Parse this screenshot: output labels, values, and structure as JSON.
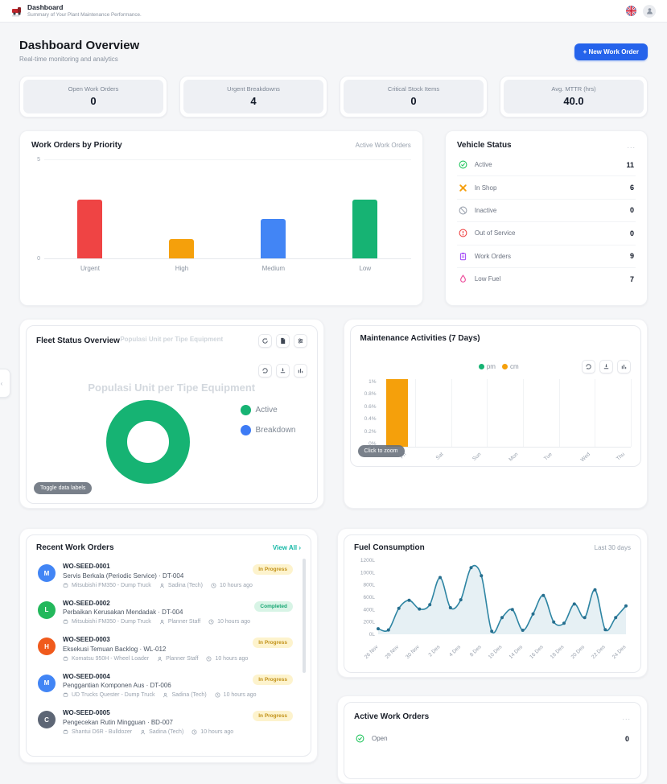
{
  "topbar": {
    "title": "Dashboard",
    "subtitle": "Summary of Your Plant Maintenance Performance."
  },
  "page": {
    "title": "Dashboard Overview",
    "subtitle": "Real-time monitoring and analytics",
    "new_order_button": "+ New Work Order"
  },
  "stats": [
    {
      "label": "Open Work Orders",
      "value": "0"
    },
    {
      "label": "Urgent Breakdowns",
      "value": "4"
    },
    {
      "label": "Critical Stock Items",
      "value": "0"
    },
    {
      "label": "Avg. MTTR (hrs)",
      "value": "40.0"
    }
  ],
  "priority_panel": {
    "title": "Work Orders by Priority",
    "subtitle": "Active Work Orders"
  },
  "vehicle_panel": {
    "title": "Vehicle Status",
    "menu": "...",
    "rows": [
      {
        "icon": "check-circle-icon",
        "label": "Active",
        "value": "11",
        "color": "#22c55e"
      },
      {
        "icon": "tools-icon",
        "label": "In Shop",
        "value": "6",
        "color": "#f59e0b"
      },
      {
        "icon": "ban-icon",
        "label": "Inactive",
        "value": "0",
        "color": "#9ca3af"
      },
      {
        "icon": "alert-circle-icon",
        "label": "Out of Service",
        "value": "0",
        "color": "#ef4444"
      },
      {
        "icon": "clipboard-icon",
        "label": "Work Orders",
        "value": "9",
        "color": "#a855f7"
      },
      {
        "icon": "fuel-icon",
        "label": "Low Fuel",
        "value": "7",
        "color": "#ec4899"
      }
    ]
  },
  "fleet_panel": {
    "title": "Fleet Status Overview",
    "header_caption": "Populasi Unit per Tipe Equipment",
    "chart_title": "Populasi Unit per Tipe Equipment",
    "toolbar": [
      "refresh-icon",
      "export-icon",
      "filter-icon"
    ],
    "chart_toolbar": [
      "reload-icon",
      "download-icon",
      "data-view-icon"
    ],
    "legend": [
      {
        "label": "Active",
        "color": "#16b373"
      },
      {
        "label": "Breakdown",
        "color": "#3d7bf5"
      }
    ],
    "toggle_button": "Toggle data labels"
  },
  "maintenance_panel": {
    "title": "Maintenance Activities (7 Days)",
    "legend": [
      {
        "label": "pm",
        "color": "#16b373"
      },
      {
        "label": "cm",
        "color": "#f5a00b"
      }
    ],
    "chart_toolbar": [
      "reload-icon",
      "download-icon",
      "data-view-icon"
    ],
    "zoom_hint": "Click to zoom"
  },
  "recent_panel": {
    "title": "Recent Work Orders",
    "view_all": "View All",
    "view_all_arrow": "›",
    "meta_icons": [
      "asset-icon",
      "person-icon",
      "clock-icon"
    ],
    "items": [
      {
        "avatar": "M",
        "avatar_color": "#4285f5",
        "code": "WO-SEED-0001",
        "desc": "Servis Berkala (Periodic Service) · DT-004",
        "asset": "Mitsubishi FM350 - Dump Truck",
        "person": "Sadina (Tech)",
        "time": "10 hours ago",
        "status": "In Progress"
      },
      {
        "avatar": "L",
        "avatar_color": "#23b85c",
        "code": "WO-SEED-0002",
        "desc": "Perbaikan Kerusakan Mendadak · DT-004",
        "asset": "Mitsubishi FM350 - Dump Truck",
        "person": "Planner Staff",
        "time": "10 hours ago",
        "status": "Completed"
      },
      {
        "avatar": "H",
        "avatar_color": "#f05a1c",
        "code": "WO-SEED-0003",
        "desc": "Eksekusi Temuan Backlog · WL-012",
        "asset": "Komatsu 950H - Wheel Loader",
        "person": "Planner Staff",
        "time": "10 hours ago",
        "status": "In Progress"
      },
      {
        "avatar": "M",
        "avatar_color": "#4285f5",
        "code": "WO-SEED-0004",
        "desc": "Penggantian Komponen Aus · DT-006",
        "asset": "UD Trucks Quester - Dump Truck",
        "person": "Sadina (Tech)",
        "time": "10 hours ago",
        "status": "In Progress"
      },
      {
        "avatar": "C",
        "avatar_color": "#5d6675",
        "code": "WO-SEED-0005",
        "desc": "Pengecekan Rutin Mingguan · BD-007",
        "asset": "Shantui D6R - Bulldozer",
        "person": "Sadina (Tech)",
        "time": "10 hours ago",
        "status": "In Progress"
      }
    ],
    "badge_styles": {
      "In Progress": {
        "bg": "#fdf3cd",
        "fg": "#c19016"
      },
      "Completed": {
        "bg": "#d8f4e6",
        "fg": "#17a673"
      }
    }
  },
  "fuel_panel": {
    "title": "Fuel Consumption",
    "subtitle": "Last 30 days"
  },
  "active_panel": {
    "title": "Active Work Orders",
    "menu": "...",
    "rows": [
      {
        "icon": "check-circle-icon",
        "label": "Open",
        "value": "0",
        "color": "#22c55e"
      }
    ]
  },
  "chart_data": [
    {
      "id": "priority",
      "type": "bar",
      "title": "Work Orders by Priority",
      "categories": [
        "Urgent",
        "High",
        "Medium",
        "Low"
      ],
      "values": [
        3,
        1,
        2,
        3
      ],
      "colors": [
        "#ef4444",
        "#f5a00b",
        "#4285f5",
        "#16b373"
      ],
      "ylim": [
        0,
        5
      ],
      "ytick_labels": [
        "0",
        "5"
      ]
    },
    {
      "id": "fleet",
      "type": "pie",
      "title": "Populasi Unit per Tipe Equipment",
      "labels": [
        "Active",
        "Breakdown"
      ],
      "values": [
        100,
        0
      ],
      "colors": [
        "#16b373",
        "#3d7bf5"
      ]
    },
    {
      "id": "maintenance",
      "type": "bar",
      "title": "Maintenance Activities (7 Days)",
      "categories": [
        "Fri",
        "Sat",
        "Sun",
        "Mon",
        "Tue",
        "Wed",
        "Thu"
      ],
      "series": [
        {
          "name": "pm",
          "color": "#16b373",
          "values": [
            0,
            0,
            0,
            0,
            0,
            0,
            0
          ]
        },
        {
          "name": "cm",
          "color": "#f5a00b",
          "values": [
            1,
            0,
            0,
            0,
            0,
            0,
            0
          ]
        }
      ],
      "ylim": [
        0,
        1
      ],
      "ytick_labels": [
        "0%",
        "0.2%",
        "0.4%",
        "0.6%",
        "0.8%",
        "1%"
      ]
    },
    {
      "id": "fuel",
      "type": "line",
      "title": "Fuel Consumption",
      "values": [
        90,
        70,
        420,
        550,
        410,
        480,
        920,
        430,
        560,
        1080,
        950,
        50,
        270,
        400,
        65,
        330,
        630,
        200,
        180,
        490,
        270,
        720,
        75,
        270,
        460
      ],
      "x_tick_labels": [
        "26 Nov",
        "28 Nov",
        "30 Nov",
        "2 Des",
        "4 Des",
        "8 Des",
        "10 Des",
        "14 Des",
        "16 Des",
        "18 Des",
        "20 Des",
        "22 Des",
        "24 Des"
      ],
      "x_tick_indices": [
        0,
        2,
        4,
        6,
        8,
        10,
        12,
        14,
        16,
        18,
        20,
        22,
        24
      ],
      "ylim": [
        0,
        1200
      ],
      "ytick_labels": [
        "0L",
        "200L",
        "400L",
        "600L",
        "800L",
        "1000L",
        "1200L"
      ],
      "line_color": "#2e85a3",
      "fill_color": "#e2edf2"
    }
  ]
}
